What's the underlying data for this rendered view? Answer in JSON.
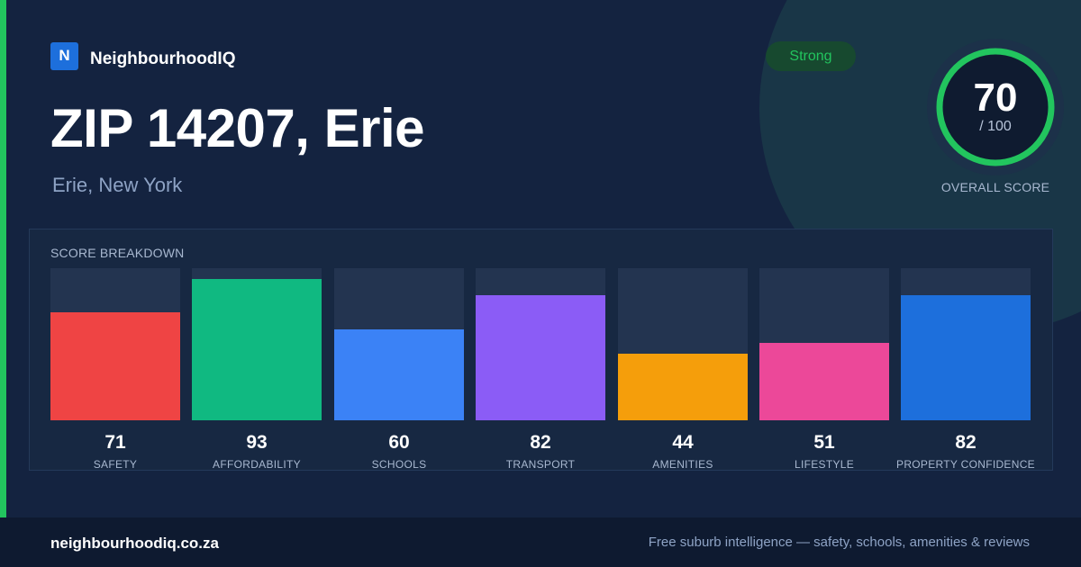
{
  "brand": {
    "logo_letter": "N",
    "name": "NeighbourhoodIQ"
  },
  "title": "ZIP 14207, Erie",
  "subtitle": "Erie, New York",
  "status_badge": "Strong",
  "overall": {
    "value": "70",
    "max": "/ 100",
    "label": "OVERALL SCORE",
    "ring_color": "#22c55e",
    "fraction": 0.7
  },
  "breakdown": {
    "title": "SCORE BREAKDOWN",
    "items": [
      {
        "label": "SAFETY",
        "value": 71,
        "color": "#ef4444"
      },
      {
        "label": "AFFORDABILITY",
        "value": 93,
        "color": "#10b981"
      },
      {
        "label": "SCHOOLS",
        "value": 60,
        "color": "#3b82f6"
      },
      {
        "label": "TRANSPORT",
        "value": 82,
        "color": "#8b5cf6"
      },
      {
        "label": "AMENITIES",
        "value": 44,
        "color": "#f59e0b"
      },
      {
        "label": "LIFESTYLE",
        "value": 51,
        "color": "#ec4899"
      },
      {
        "label": "PROPERTY CONFIDENCE",
        "value": 82,
        "color": "#1d6fdc"
      }
    ]
  },
  "footer": {
    "domain": "neighbourhoodiq.co.za",
    "tagline": "Free suburb intelligence — safety, schools, amenities & reviews"
  }
}
